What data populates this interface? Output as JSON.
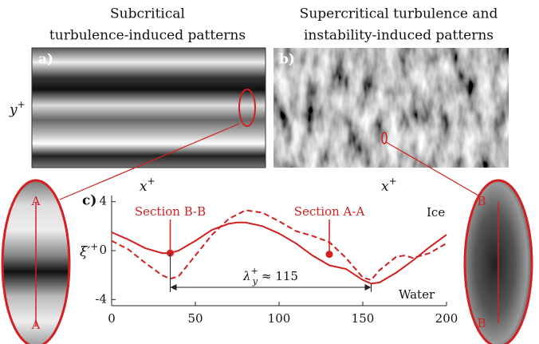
{
  "panels": {
    "a": {
      "label": "a)",
      "title_lines": [
        "Subcritical",
        "turbulence-induced patterns"
      ]
    },
    "b": {
      "label": "b)",
      "title_lines": [
        "Supercritical turbulence and",
        "instability-induced patterns"
      ]
    },
    "y_axis": {
      "symbol": "y",
      "sup": "+"
    },
    "x_axis": {
      "symbol": "x",
      "sup": "+"
    },
    "zoom_left": {
      "top": "A",
      "bottom": "A"
    },
    "zoom_right": {
      "top": "B",
      "bottom": "B"
    }
  },
  "chart_data": {
    "type": "line",
    "panel_label": "c)",
    "ylabel": {
      "symbol": "ξ′",
      "sup": "+"
    },
    "xlim": [
      0,
      200
    ],
    "ylim": [
      -4.5,
      4.5
    ],
    "xticks": [
      0,
      50,
      100,
      150,
      200
    ],
    "yticks": [
      -4,
      0,
      4
    ],
    "color": "#d42020",
    "series": [
      {
        "style": "solid",
        "x": [
          0,
          10,
          20,
          30,
          35,
          40,
          50,
          60,
          70,
          75,
          80,
          90,
          100,
          110,
          120,
          130,
          140,
          150,
          155,
          160,
          170,
          180,
          190,
          200
        ],
        "values": [
          1.5,
          0.9,
          0.2,
          -0.2,
          -0.2,
          0.0,
          0.8,
          1.7,
          2.2,
          2.3,
          2.3,
          2.0,
          1.4,
          0.6,
          -0.4,
          -1.2,
          -1.5,
          -2.4,
          -2.7,
          -2.6,
          -1.8,
          -0.8,
          0.3,
          1.3
        ]
      },
      {
        "style": "dashed",
        "x": [
          0,
          10,
          20,
          30,
          35,
          40,
          50,
          60,
          70,
          80,
          90,
          100,
          110,
          120,
          130,
          140,
          150,
          155,
          160,
          170,
          175,
          180,
          190,
          200
        ],
        "values": [
          0.8,
          0.1,
          -1.0,
          -2.0,
          -2.3,
          -2.1,
          -0.4,
          1.3,
          2.6,
          3.3,
          3.1,
          2.4,
          1.6,
          1.2,
          0.7,
          -0.6,
          -2.2,
          -2.4,
          -1.6,
          -0.5,
          -0.4,
          -0.6,
          -0.2,
          0.6
        ]
      }
    ],
    "points": [
      {
        "label": "Section B-B",
        "x": 35,
        "y": -0.2
      },
      {
        "label": "Section A-A",
        "x": 130,
        "y": -0.3
      }
    ],
    "wavelength": {
      "x_start": 35,
      "x_end": 155,
      "y": -3.0,
      "symbol": "λ",
      "sub": "y",
      "sup": "+",
      "rest": "≈ 115"
    },
    "top_label": "Ice",
    "bottom_label": "Water"
  }
}
